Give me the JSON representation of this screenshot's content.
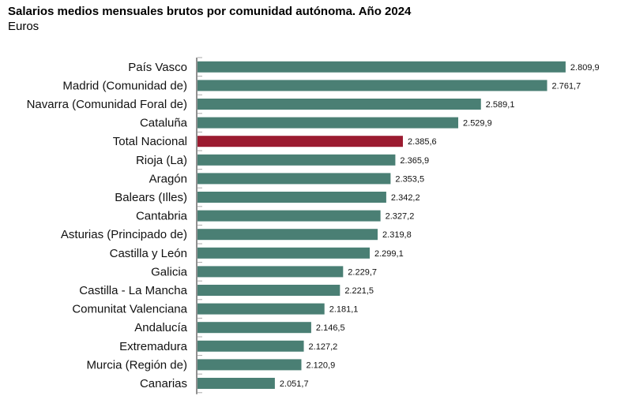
{
  "chart_data": {
    "type": "bar",
    "orientation": "horizontal",
    "title": "Salarios medios mensuales brutos por comunidad autónoma. Año 2024",
    "subtitle": "Euros",
    "categories": [
      "País Vasco",
      "Madrid (Comunidad de)",
      "Navarra (Comunidad Foral de)",
      "Cataluña",
      "Total Nacional",
      "Rioja (La)",
      "Aragón",
      "Balears (Illes)",
      "Cantabria",
      "Asturias (Principado de)",
      "Castilla y León",
      "Galicia",
      "Castilla - La Mancha",
      "Comunitat Valenciana",
      "Andalucía",
      "Extremadura",
      "Murcia (Región de)",
      "Canarias"
    ],
    "values": [
      2809.9,
      2761.7,
      2589.1,
      2529.9,
      2385.6,
      2365.9,
      2353.5,
      2342.2,
      2327.2,
      2319.8,
      2299.1,
      2229.7,
      2221.5,
      2181.1,
      2146.5,
      2127.2,
      2120.9,
      2051.7
    ],
    "value_labels": [
      "2.809,9",
      "2.761,7",
      "2.589,1",
      "2.529,9",
      "2.385,6",
      "2.365,9",
      "2.353,5",
      "2.342,2",
      "2.327,2",
      "2.319,8",
      "2.299,1",
      "2.229,7",
      "2.221,5",
      "2.181,1",
      "2.146,5",
      "2.127,2",
      "2.120,9",
      "2.051,7"
    ],
    "highlight": "Total Nacional",
    "xlim": [
      1850,
      2850
    ],
    "grid": false,
    "colors": {
      "bar": "#4a7f74",
      "highlight": "#9b1b30"
    }
  }
}
